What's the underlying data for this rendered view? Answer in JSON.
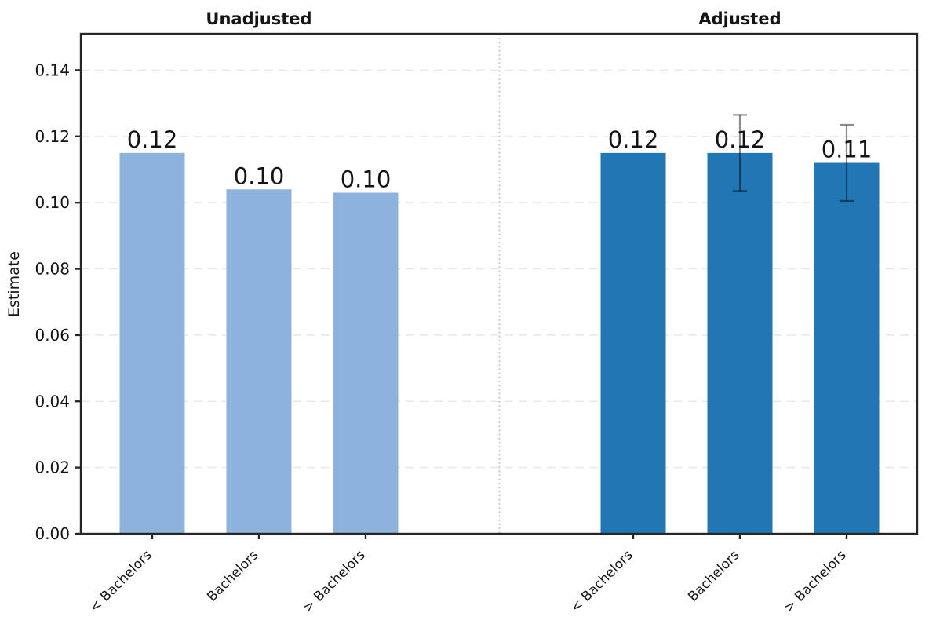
{
  "chart_data": {
    "type": "bar",
    "title": "",
    "ylabel": "Estimate",
    "xlabel": "",
    "ylim": [
      0,
      0.151
    ],
    "yticks": [
      "0.00",
      "0.02",
      "0.04",
      "0.06",
      "0.08",
      "0.10",
      "0.12",
      "0.14"
    ],
    "grid": "horizontal-dashed",
    "panel_separator": "vertical-dotted",
    "panels": [
      {
        "title": "Unadjusted",
        "bar_color": "#8db3dd",
        "categories": [
          "< Bachelors",
          "Bachelors",
          "> Bachelors"
        ],
        "values": [
          0.115,
          0.104,
          0.103
        ],
        "bar_labels": [
          "0.12",
          "0.10",
          "0.10"
        ],
        "error_bars": [
          null,
          null,
          null
        ]
      },
      {
        "title": "Adjusted",
        "bar_color": "#2176b4",
        "categories": [
          "< Bachelors",
          "Bachelors",
          "> Bachelors"
        ],
        "values": [
          0.115,
          0.115,
          0.112
        ],
        "bar_labels": [
          "0.12",
          "0.12",
          "0.11"
        ],
        "error_bars": [
          null,
          [
            0.1035,
            0.1265
          ],
          [
            0.1005,
            0.1235
          ]
        ]
      }
    ],
    "colors": {
      "background": "#ffffff",
      "grid": "#e8e8e8",
      "separator": "#bbbbbb",
      "spine": "#262626",
      "error_bar": "#000000",
      "error_bar_opacity": 0.45,
      "text": "#141414"
    }
  }
}
